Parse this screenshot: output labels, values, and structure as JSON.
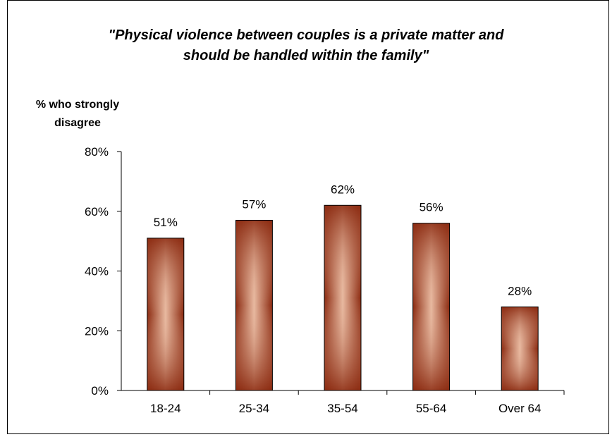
{
  "chart_data": {
    "type": "bar",
    "title_line1": "\"Physical violence between couples is a private matter and",
    "title_line2": "should be handled within the family\"",
    "ylabel_line1": "% who strongly",
    "ylabel_line2": "disagree",
    "xlabel": "",
    "categories": [
      "18-24",
      "25-34",
      "35-54",
      "55-64",
      "Over 64"
    ],
    "values": [
      51,
      57,
      62,
      56,
      28
    ],
    "value_labels": [
      "51%",
      "57%",
      "62%",
      "56%",
      "28%"
    ],
    "ylim": [
      0,
      80
    ],
    "yticks": [
      0,
      20,
      40,
      60,
      80
    ],
    "ytick_labels": [
      "0%",
      "20%",
      "40%",
      "60%",
      "80%"
    ],
    "grid": false,
    "legend": "none",
    "bar_color_edge": "#8B2A10",
    "bar_color_center": "#E8B9A0"
  }
}
